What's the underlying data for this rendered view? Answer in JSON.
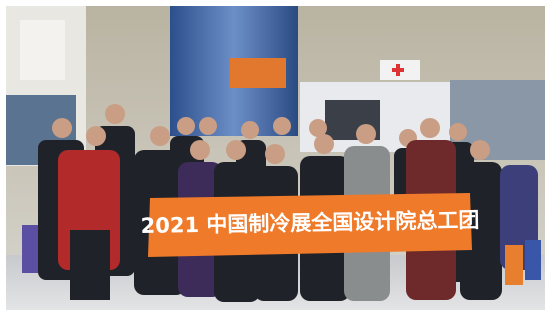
{
  "banner": {
    "text": "2021 中国制冷展全国设计院总工团"
  }
}
